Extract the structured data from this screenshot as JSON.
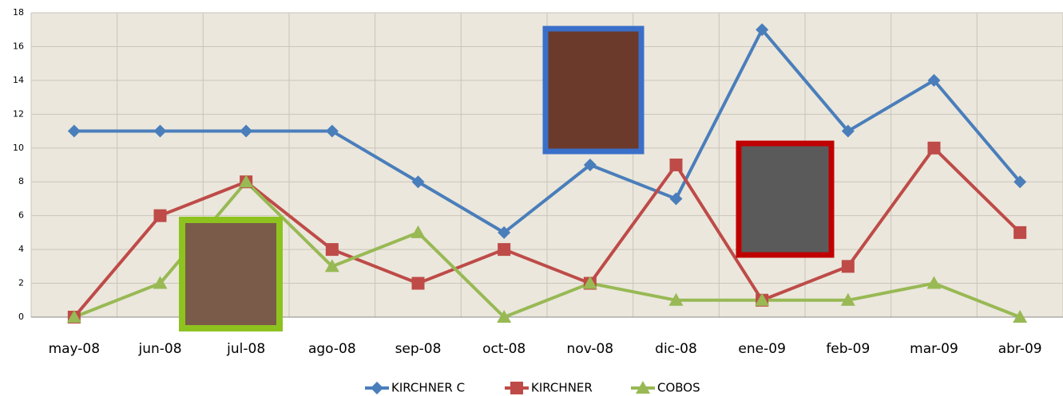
{
  "chart_data": {
    "type": "line",
    "categories": [
      "may-08",
      "jun-08",
      "jul-08",
      "ago-08",
      "sep-08",
      "oct-08",
      "nov-08",
      "dic-08",
      "ene-09",
      "feb-09",
      "mar-09",
      "abr-09"
    ],
    "series": [
      {
        "name": "KIRCHNER C",
        "color": "#4a7ebb",
        "marker": "diamond",
        "values": [
          11,
          11,
          11,
          11,
          8,
          5,
          9,
          7,
          17,
          11,
          14,
          8
        ]
      },
      {
        "name": "KIRCHNER",
        "color": "#be4b48",
        "marker": "square",
        "values": [
          0,
          6,
          8,
          4,
          2,
          4,
          2,
          9,
          1,
          3,
          10,
          5
        ]
      },
      {
        "name": "COBOS",
        "color": "#98b954",
        "marker": "triangle",
        "values": [
          0,
          2,
          8,
          3,
          5,
          0,
          2,
          1,
          1,
          1,
          2,
          0
        ]
      }
    ],
    "ylim": [
      0,
      18
    ],
    "yticks": [
      0,
      2,
      4,
      6,
      8,
      10,
      12,
      14,
      16,
      18
    ],
    "grid": true,
    "legend": "bottom"
  }
}
